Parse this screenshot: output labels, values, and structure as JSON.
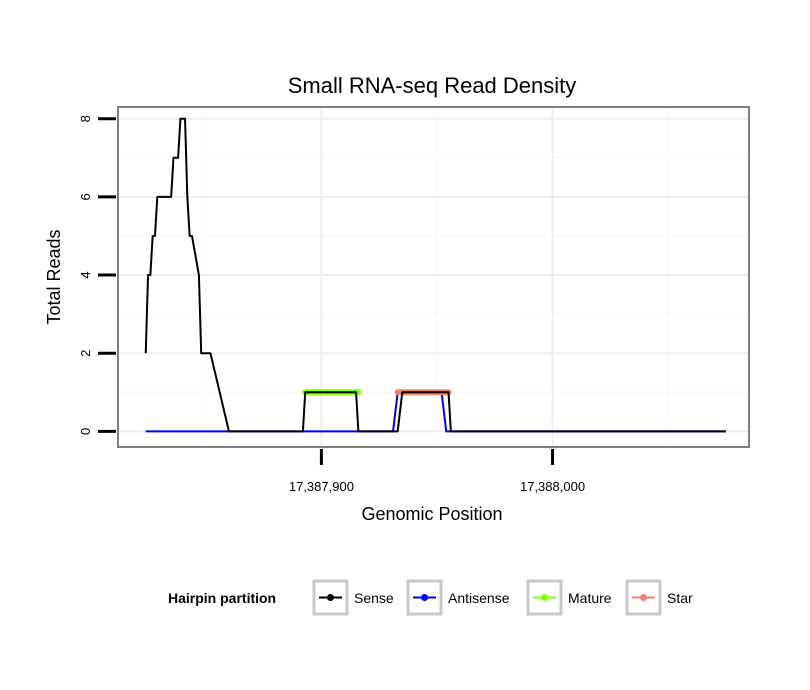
{
  "chart_data": {
    "type": "line",
    "title": "Small RNA-seq Read Density",
    "xlabel": "Genomic Position",
    "ylabel": "Total Reads",
    "xlim": [
      17387812,
      17388085
    ],
    "ylim": [
      -0.4,
      8.3
    ],
    "x_ticks": [
      17387900,
      17388000
    ],
    "x_tick_labels": [
      "17,387,900",
      "17,388,000"
    ],
    "y_ticks": [
      0,
      2,
      4,
      6,
      8
    ],
    "y_tick_labels": [
      "0",
      "2",
      "4",
      "6",
      "8"
    ],
    "grid": true,
    "legend_position": "bottom",
    "legend_title": "Hairpin partition",
    "series": [
      {
        "name": "Sense",
        "color": "#000000",
        "x": [
          17387824,
          17387825,
          17387826,
          17387827,
          17387828,
          17387829,
          17387831,
          17387832,
          17387835,
          17387836,
          17387838,
          17387839,
          17387840,
          17387841,
          17387842,
          17387843,
          17387844,
          17387847,
          17387848,
          17387851,
          17387852,
          17387860,
          17387862,
          17387892,
          17387893,
          17387915,
          17387916,
          17387933,
          17387935,
          17387955,
          17387956,
          17388075
        ],
        "y": [
          2,
          4,
          4,
          5,
          5,
          6,
          6,
          6,
          6,
          7,
          7,
          8,
          8,
          8,
          6,
          5,
          5,
          4,
          2,
          2,
          2,
          0,
          0,
          0,
          1,
          1,
          0,
          0,
          1,
          1,
          0,
          0
        ]
      },
      {
        "name": "Antisense",
        "color": "#0000ff",
        "x": [
          17387824,
          17387892,
          17387893,
          17387915,
          17387916,
          17387931,
          17387933,
          17387952,
          17387954,
          17388075
        ],
        "y": [
          0,
          0,
          0,
          0,
          0,
          0,
          1,
          1,
          0,
          0
        ]
      },
      {
        "name": "Mature",
        "color": "#7fff00",
        "x": [
          17387893,
          17387916
        ],
        "y": [
          1,
          1
        ]
      },
      {
        "name": "Star",
        "color": "#f08070",
        "x": [
          17387933,
          17387955
        ],
        "y": [
          1,
          1
        ]
      }
    ]
  }
}
